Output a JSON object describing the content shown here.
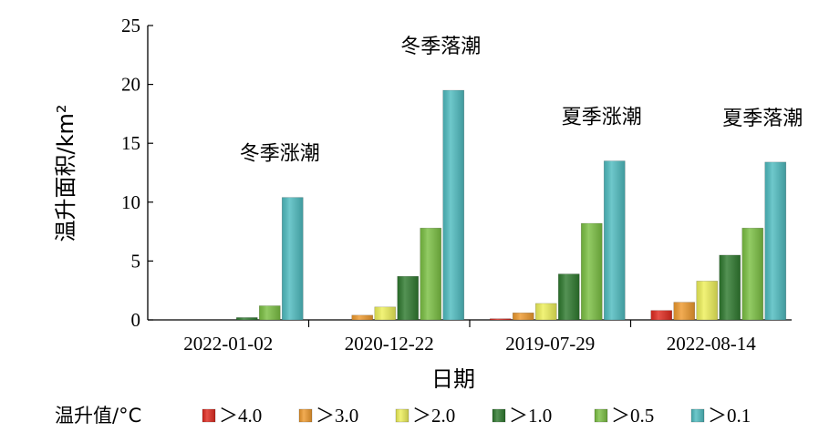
{
  "chart_data": {
    "type": "bar",
    "categories": [
      "2022-01-02",
      "2020-12-22",
      "2019-07-29",
      "2022-08-14"
    ],
    "annotations": [
      "冬季涨潮",
      "冬季落潮",
      "夏季涨潮",
      "夏季落潮"
    ],
    "series": [
      {
        "name": "＞4.0",
        "color": "#e02a1f",
        "values": [
          0,
          0,
          0.1,
          0.8
        ]
      },
      {
        "name": "＞3.0",
        "color": "#ef9a2e",
        "values": [
          0,
          0.4,
          0.6,
          1.5
        ]
      },
      {
        "name": "＞2.0",
        "color": "#eef05a",
        "values": [
          0,
          1.1,
          1.4,
          3.3
        ]
      },
      {
        "name": "＞1.0",
        "color": "#2f7a2f",
        "values": [
          0.2,
          3.7,
          3.9,
          5.5
        ]
      },
      {
        "name": "＞0.5",
        "color": "#7bc043",
        "values": [
          1.2,
          7.8,
          8.2,
          7.8
        ]
      },
      {
        "name": "＞0.1",
        "color": "#4fbcc0",
        "values": [
          10.4,
          19.5,
          13.5,
          13.4
        ]
      }
    ],
    "xlabel": "日期",
    "ylabel": "温升面积/km²",
    "ylim": [
      0,
      25
    ],
    "yticks": [
      "0",
      "5",
      "10",
      "15",
      "20",
      "25"
    ],
    "legend_title": "温升值/°C",
    "legend_position": "bottom",
    "grid": false
  }
}
